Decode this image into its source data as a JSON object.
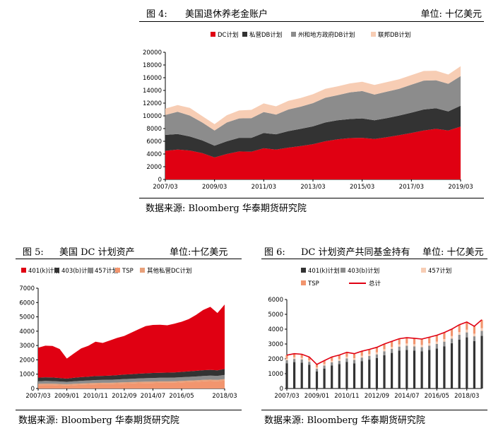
{
  "fig4": {
    "title_no": "图 4:",
    "title": "美国退休养老金账户",
    "unit": "单位: 十亿美元",
    "source": "数据来源: Bloomberg 华泰期货研究院"
  },
  "fig5": {
    "title_no": "图 5:",
    "title": "美国 DC 计划资产",
    "unit": "单位:十亿美元",
    "source": "数据来源: Bloomberg 华泰期货研究院"
  },
  "fig6": {
    "title_no": "图 6:",
    "title": "DC 计划资产共同基金持有",
    "unit": "单位: 十亿美元",
    "source": "数据来源: Bloomberg 华泰期货研究院"
  },
  "colors": {
    "red": "#e00012",
    "dark": "#333333",
    "gray": "#8c8c8c",
    "peach": "#f7cdb4",
    "salmon": "#f2956e",
    "total_line": "#e00012"
  },
  "chart_data": [
    {
      "type": "area",
      "stacked": true,
      "x": [
        "2007/03",
        "2007/09",
        "2008/03",
        "2008/09",
        "2009/03",
        "2009/09",
        "2010/03",
        "2010/09",
        "2011/03",
        "2011/09",
        "2012/03",
        "2012/09",
        "2013/03",
        "2013/09",
        "2014/03",
        "2014/09",
        "2015/03",
        "2015/09",
        "2016/03",
        "2016/09",
        "2017/03",
        "2017/09",
        "2018/03",
        "2018/09",
        "2019/03"
      ],
      "xticks": [
        "2007/03",
        "2009/03",
        "2011/03",
        "2013/03",
        "2015/03",
        "2017/03",
        "2019/03"
      ],
      "ylim": [
        0,
        20000
      ],
      "yticks": [
        0,
        2000,
        4000,
        6000,
        8000,
        10000,
        12000,
        14000,
        16000,
        18000,
        20000
      ],
      "series": [
        {
          "name": "DC计划",
          "color": "#e00012",
          "values": [
            4500,
            4700,
            4550,
            4150,
            3450,
            4000,
            4400,
            4350,
            4900,
            4700,
            5000,
            5250,
            5550,
            6000,
            6300,
            6500,
            6550,
            6350,
            6650,
            6950,
            7300,
            7700,
            7950,
            7700,
            8300
          ]
        },
        {
          "name": "私营DB计划",
          "color": "#333333",
          "values": [
            2500,
            2450,
            2200,
            2000,
            1850,
            2000,
            2150,
            2200,
            2400,
            2400,
            2600,
            2700,
            2800,
            2950,
            3000,
            3000,
            3050,
            2950,
            3000,
            3100,
            3200,
            3300,
            3250,
            3000,
            3300
          ]
        },
        {
          "name": "州和地方政府DB计划",
          "color": "#8c8c8c",
          "values": [
            3150,
            3500,
            3300,
            2800,
            2400,
            2950,
            3050,
            3100,
            3300,
            3100,
            3400,
            3500,
            3650,
            3900,
            3950,
            4200,
            4300,
            4050,
            4150,
            4200,
            4400,
            4550,
            4400,
            4350,
            4650
          ]
        },
        {
          "name": "联邦DB计划",
          "color": "#f7cdb4",
          "values": [
            1000,
            1050,
            1200,
            1000,
            1000,
            1150,
            1250,
            1300,
            1350,
            1300,
            1350,
            1350,
            1400,
            1400,
            1400,
            1400,
            1450,
            1500,
            1500,
            1500,
            1500,
            1500,
            1500,
            1450,
            1550
          ]
        }
      ]
    },
    {
      "type": "area",
      "stacked": true,
      "x": [
        "2007/03",
        "2007/09",
        "2008/03",
        "2008/09",
        "2009/01",
        "2009/07",
        "2010/01",
        "2010/07",
        "2010/11",
        "2011/05",
        "2011/11",
        "2012/05",
        "2012/09",
        "2013/03",
        "2013/09",
        "2014/03",
        "2014/07",
        "2015/01",
        "2015/07",
        "2016/01",
        "2016/05",
        "2016/11",
        "2017/05",
        "2017/11",
        "2018/05",
        "2018/09",
        "2019/01"
      ],
      "xticks": [
        "2007/03",
        "2009/01",
        "2010/11",
        "2012/09",
        "2014/07",
        "2016/05",
        "2018/03"
      ],
      "ylim": [
        0,
        7000
      ],
      "yticks": [
        0,
        1000,
        2000,
        3000,
        4000,
        5000,
        6000,
        7000
      ],
      "series": [
        {
          "name": "TSP",
          "color": "#f2956e",
          "values": [
            230,
            240,
            240,
            220,
            200,
            230,
            250,
            270,
            290,
            300,
            300,
            320,
            340,
            350,
            370,
            380,
            390,
            400,
            400,
            410,
            430,
            450,
            470,
            500,
            520,
            500,
            560
          ]
        },
        {
          "name": "其他私营DC计划",
          "color": "#e8a07a",
          "values": [
            100,
            100,
            100,
            100,
            100,
            100,
            100,
            100,
            100,
            100,
            100,
            100,
            100,
            100,
            100,
            100,
            100,
            100,
            100,
            100,
            100,
            100,
            100,
            100,
            100,
            100,
            100
          ]
        },
        {
          "name": "457计划",
          "color": "#8c8c8c",
          "values": [
            180,
            185,
            180,
            175,
            170,
            180,
            185,
            190,
            200,
            200,
            210,
            210,
            220,
            230,
            235,
            240,
            245,
            250,
            255,
            255,
            260,
            265,
            270,
            275,
            280,
            280,
            290
          ]
        },
        {
          "name": "403(b)计划",
          "color": "#333333",
          "values": [
            250,
            260,
            250,
            240,
            220,
            240,
            260,
            270,
            280,
            280,
            290,
            300,
            310,
            320,
            330,
            340,
            350,
            350,
            355,
            360,
            370,
            380,
            390,
            400,
            400,
            390,
            410
          ]
        },
        {
          "name": "401(k)计划",
          "color": "#e00012",
          "values": [
            2090,
            2200,
            2200,
            2020,
            1400,
            1700,
            2000,
            2150,
            2400,
            2300,
            2450,
            2600,
            2700,
            2900,
            3100,
            3300,
            3350,
            3350,
            3300,
            3400,
            3500,
            3650,
            3900,
            4200,
            4400,
            4000,
            4500
          ]
        }
      ]
    },
    {
      "type": "bar",
      "stacked": true,
      "x": [
        "2007/03",
        "2007/09",
        "2008/03",
        "2008/09",
        "2009/01",
        "2009/07",
        "2010/01",
        "2010/07",
        "2010/11",
        "2011/05",
        "2011/11",
        "2012/05",
        "2012/09",
        "2013/03",
        "2013/09",
        "2014/03",
        "2014/07",
        "2015/01",
        "2015/07",
        "2016/01",
        "2016/05",
        "2016/11",
        "2017/05",
        "2017/11",
        "2018/03",
        "2018/09",
        "2019/01"
      ],
      "xticks": [
        "2007/03",
        "2009/01",
        "2010/11",
        "2012/09",
        "2014/07",
        "2016/05",
        "2018/03"
      ],
      "ylim": [
        0,
        6000
      ],
      "yticks": [
        0,
        1000,
        2000,
        3000,
        4000,
        5000,
        6000
      ],
      "series": [
        {
          "name": "401(k)计划",
          "color": "#333333",
          "values": [
            1700,
            1780,
            1750,
            1600,
            1150,
            1350,
            1550,
            1650,
            1800,
            1700,
            1850,
            1950,
            2050,
            2250,
            2400,
            2550,
            2600,
            2550,
            2500,
            2600,
            2700,
            2850,
            3050,
            3300,
            3450,
            3200,
            3550
          ]
        },
        {
          "name": "403(b)计划",
          "color": "#8c8c8c",
          "values": [
            210,
            215,
            210,
            200,
            180,
            195,
            210,
            215,
            225,
            225,
            235,
            240,
            250,
            260,
            265,
            275,
            285,
            285,
            285,
            290,
            300,
            310,
            315,
            325,
            330,
            320,
            340
          ]
        },
        {
          "name": "457计划",
          "color": "#f7cdb4",
          "values": [
            110,
            115,
            110,
            105,
            95,
            105,
            115,
            120,
            125,
            125,
            130,
            130,
            135,
            140,
            145,
            150,
            150,
            150,
            150,
            155,
            160,
            165,
            170,
            175,
            180,
            175,
            185
          ]
        },
        {
          "name": "TSP",
          "color": "#f2956e",
          "values": [
            230,
            240,
            240,
            220,
            200,
            230,
            250,
            270,
            290,
            300,
            300,
            320,
            340,
            350,
            370,
            380,
            390,
            400,
            400,
            410,
            430,
            450,
            470,
            500,
            520,
            500,
            560
          ]
        }
      ],
      "line": {
        "name": "总计",
        "color": "#e00012",
        "values": [
          2250,
          2350,
          2310,
          2125,
          1625,
          1880,
          2125,
          2255,
          2440,
          2350,
          2515,
          2640,
          2775,
          3000,
          3180,
          3355,
          3425,
          3385,
          3335,
          3455,
          3590,
          3775,
          4005,
          4300,
          4480,
          4195,
          4635
        ]
      }
    }
  ]
}
